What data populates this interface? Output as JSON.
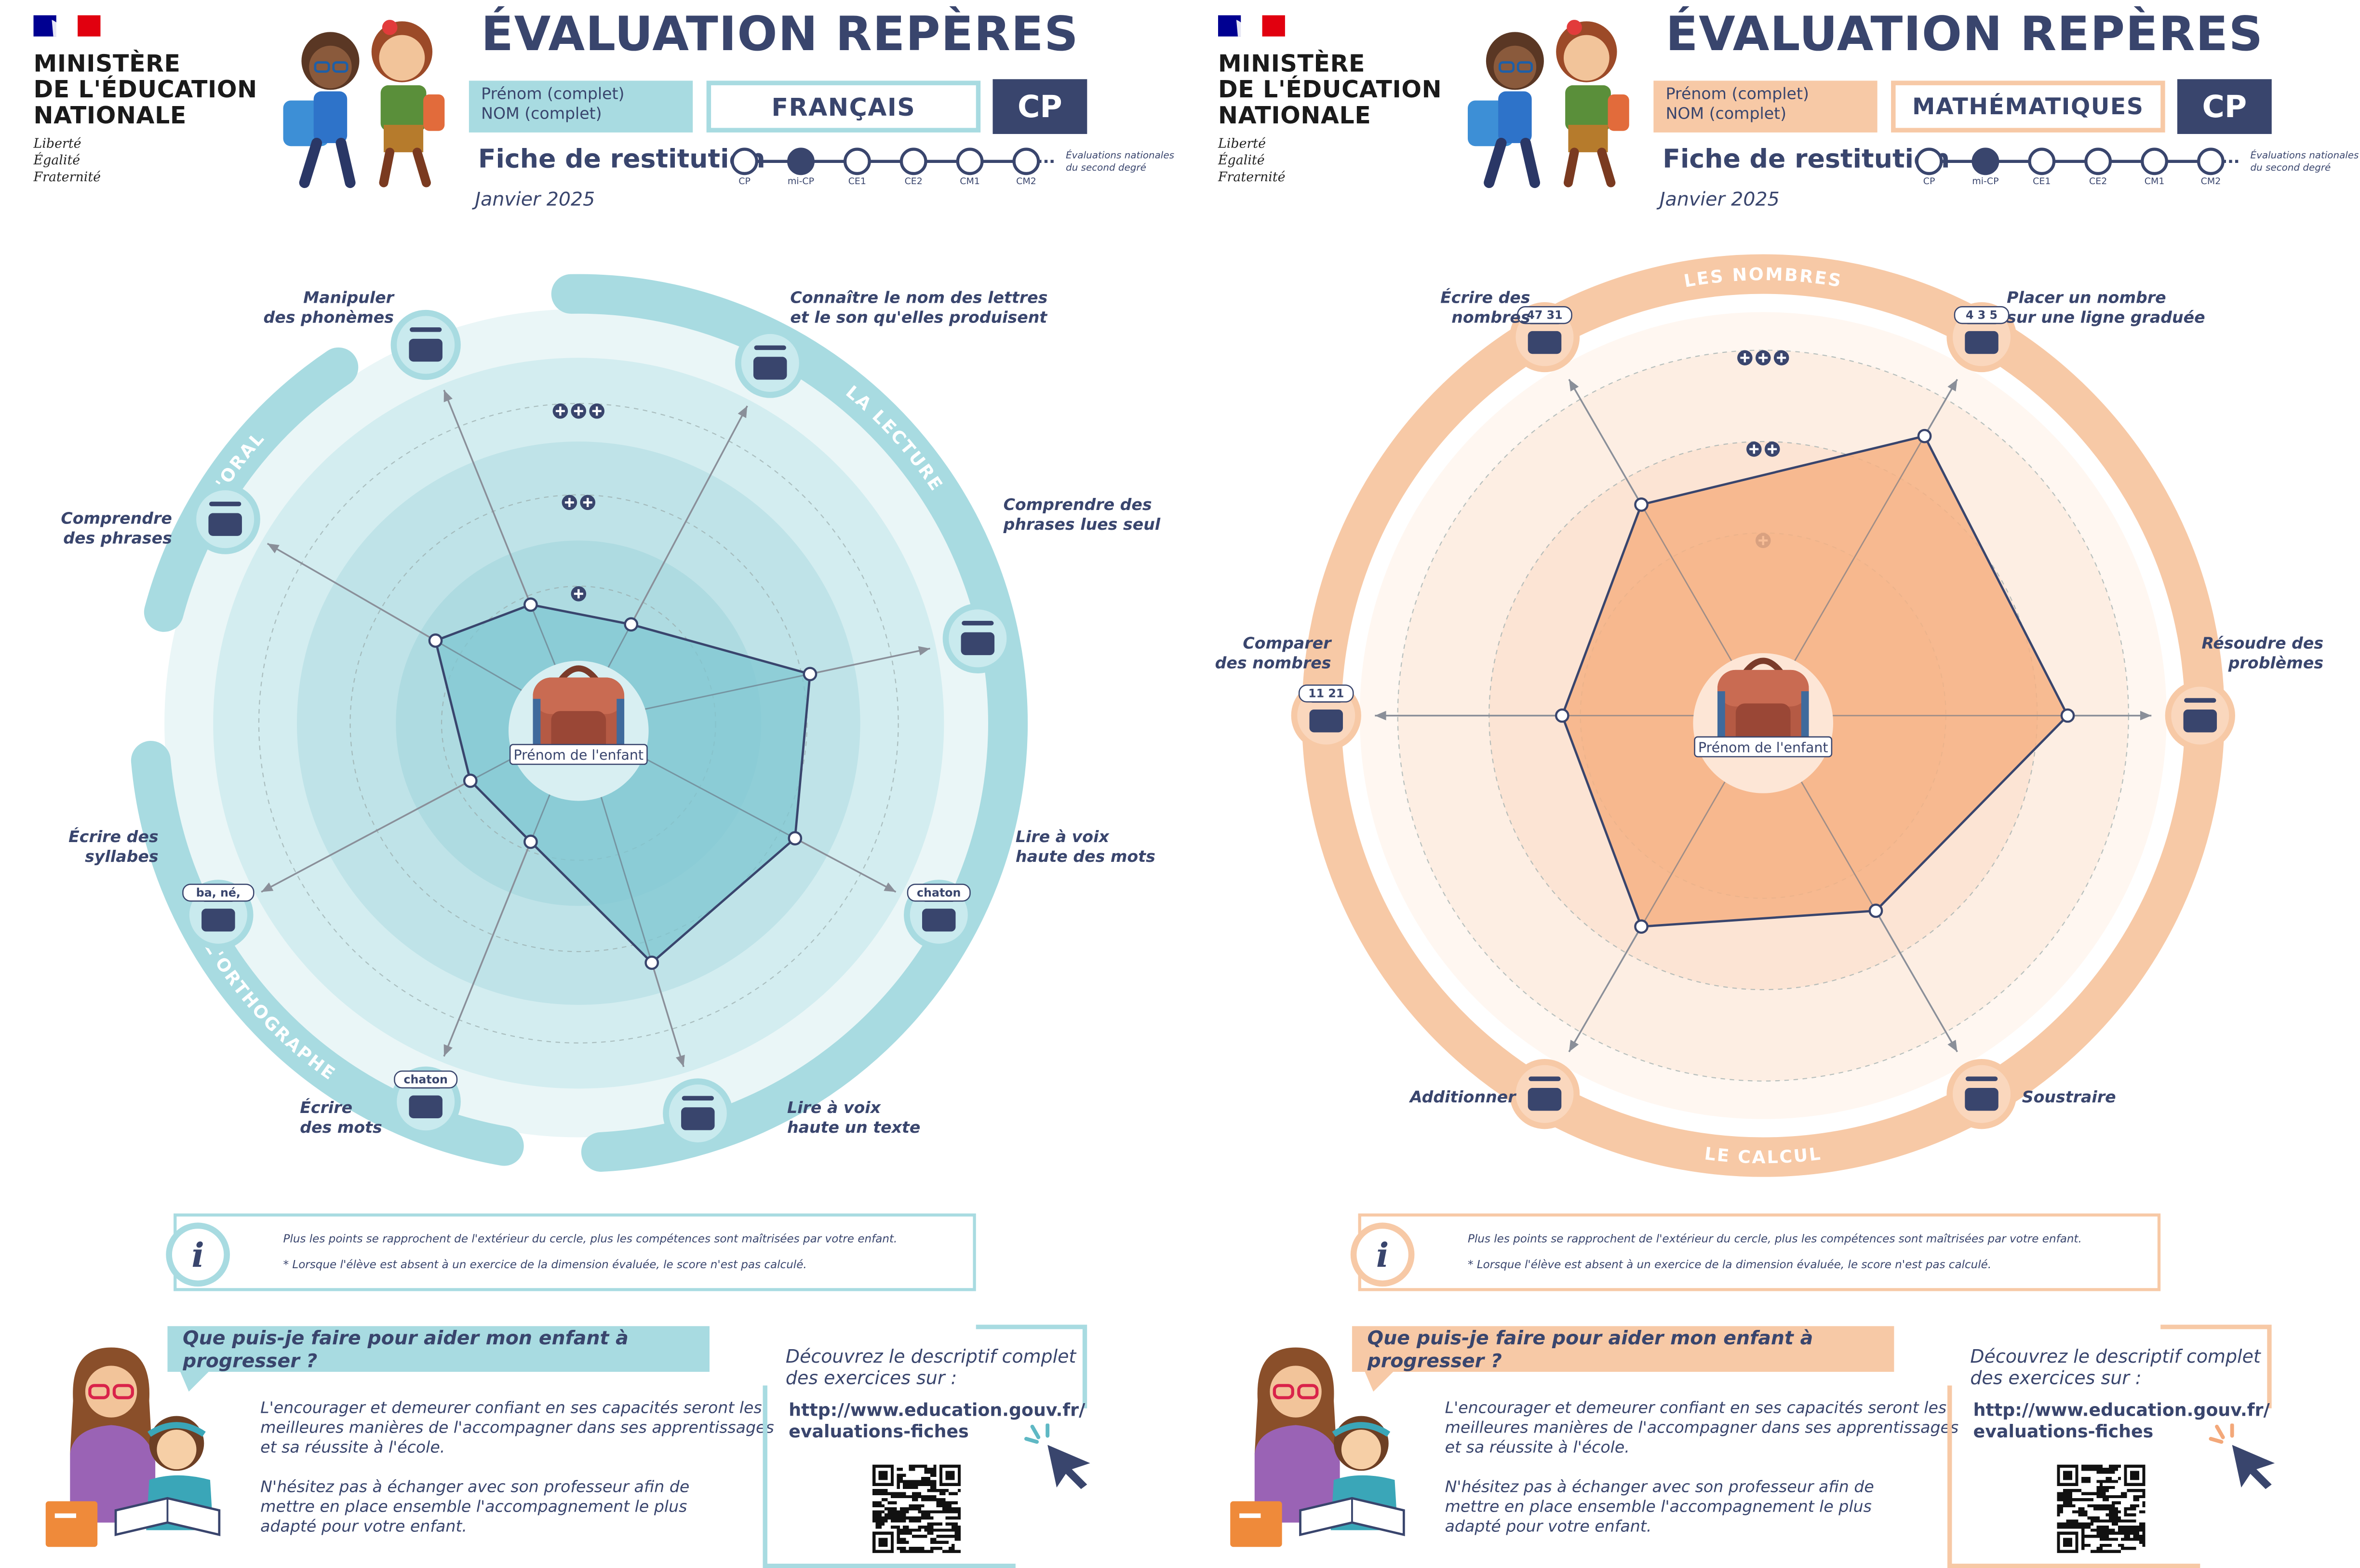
{
  "common": {
    "ministry_lines": [
      "MINISTÈRE",
      "DE L'ÉDUCATION",
      "NATIONALE"
    ],
    "motto_lines": [
      "Liberté",
      "Égalité",
      "Fraternité"
    ],
    "title": "ÉVALUATION REPÈRES",
    "first_name": "Prénom (complet)",
    "last_name": "NOM (complet)",
    "level": "CP",
    "fiche": "Fiche de restitution",
    "date": "Janvier 2025",
    "timeline": [
      "CP",
      "mi-CP",
      "CE1",
      "CE2",
      "CM1",
      "CM2"
    ],
    "timeline_active_index": 1,
    "timeline_note": [
      "Évaluations nationales",
      "du second degré"
    ],
    "child_label": "Prénom de l'enfant",
    "rings": [
      "+",
      "++",
      "+++"
    ],
    "info_line1": "Plus les points se rapprochent de l'extérieur du cercle, plus les compétences sont maîtrisées par votre enfant.",
    "info_line2": "*     Lorsque l'élève est absent à un exercice de la dimension évaluée, le score n'est pas calculé.",
    "info_icon": "i",
    "help_question": "Que puis-je faire pour aider mon enfant à progresser ?",
    "help_p1": [
      "L'encourager et demeurer confiant en ses capacités seront les",
      "meilleures manières de l'accompagner dans ses apprentissages",
      "et sa réussite à l'école."
    ],
    "help_p2": [
      "N'hésitez pas à échanger avec son professeur afin de",
      "mettre en place ensemble l'accompagnement le plus",
      "adapté pour votre enfant."
    ],
    "link_intro": [
      "Découvrez le descriptif complet",
      "des exercices sur :"
    ],
    "link_url": [
      "http://www.education.gouv.fr/",
      "evaluations-fiches"
    ],
    "icons": [
      "marianne-flag-icon",
      "children-icon",
      "backpack-icon",
      "parent-child-reading-icon",
      "qr-code-icon",
      "cursor-click-icon"
    ]
  },
  "sheets": [
    {
      "id": "fr",
      "subject": "FRANÇAIS",
      "accent": "#a8dbe1",
      "accent_dark": "#5fb8c4",
      "fill": "#7fc7d1",
      "chart_data": {
        "type": "radar",
        "scale": "0 to 3 (+, ++, +++)",
        "groups": [
          "LA LECTURE",
          "L'ORTHOGRAPHE",
          "L'ORAL"
        ],
        "axes": [
          {
            "label": [
              "Connaître le nom des lettres",
              "et le son qu'elles produisent"
            ],
            "value": 1.05,
            "icon": "letter-sound-icon"
          },
          {
            "label": [
              "Comprendre des",
              "phrases lues seul"
            ],
            "value": 2.22,
            "icon": "reading-comprehension-icon"
          },
          {
            "label": [
              "Lire à voix",
              "haute des mots"
            ],
            "value": 2.3,
            "icon": "read-words-icon",
            "badge": "chaton"
          },
          {
            "label": [
              "Lire à voix",
              "haute un texte"
            ],
            "value": 2.35,
            "icon": "read-text-icon"
          },
          {
            "label": [
              "Écrire",
              "des mots"
            ],
            "value": 1.2,
            "icon": "write-words-icon",
            "badge": "chaton"
          },
          {
            "label": [
              "Écrire des",
              "syllabes"
            ],
            "value": 1.15,
            "icon": "write-syllables-icon",
            "badge": "ba, né,"
          },
          {
            "label": [
              "Comprendre",
              "des phrases"
            ],
            "value": 1.55,
            "icon": "understand-sentences-icon"
          },
          {
            "label": [
              "Manipuler",
              "des phonèmes"
            ],
            "value": 1.2,
            "icon": "phonemes-icon"
          }
        ]
      }
    },
    {
      "id": "ma",
      "subject": "MATHÉMATIQUES",
      "accent": "#f7c9a6",
      "accent_dark": "#f3a87a",
      "fill": "#f6b184",
      "chart_data": {
        "type": "radar",
        "scale": "0 to 3 (+, ++, +++)",
        "groups": [
          "LES NOMBRES",
          "LE CALCUL"
        ],
        "axes": [
          {
            "label": [
              "Placer un nombre",
              "sur une ligne graduée"
            ],
            "value": 2.65,
            "icon": "number-line-icon",
            "badge": "4 3 5"
          },
          {
            "label": [
              "Résoudre des",
              "problèmes"
            ],
            "value": 2.5,
            "icon": "problem-solving-icon"
          },
          {
            "label": [
              "Soustraire"
            ],
            "value": 1.85,
            "icon": "subtract-icon"
          },
          {
            "label": [
              "Additionner"
            ],
            "value": 2.0,
            "icon": "add-icon"
          },
          {
            "label": [
              "Comparer",
              "des nombres"
            ],
            "value": 1.65,
            "icon": "compare-numbers-icon",
            "badge": "11 21"
          },
          {
            "label": [
              "Écrire des",
              "nombres"
            ],
            "value": 2.0,
            "icon": "write-numbers-icon",
            "badge": "47 31"
          }
        ]
      }
    }
  ]
}
